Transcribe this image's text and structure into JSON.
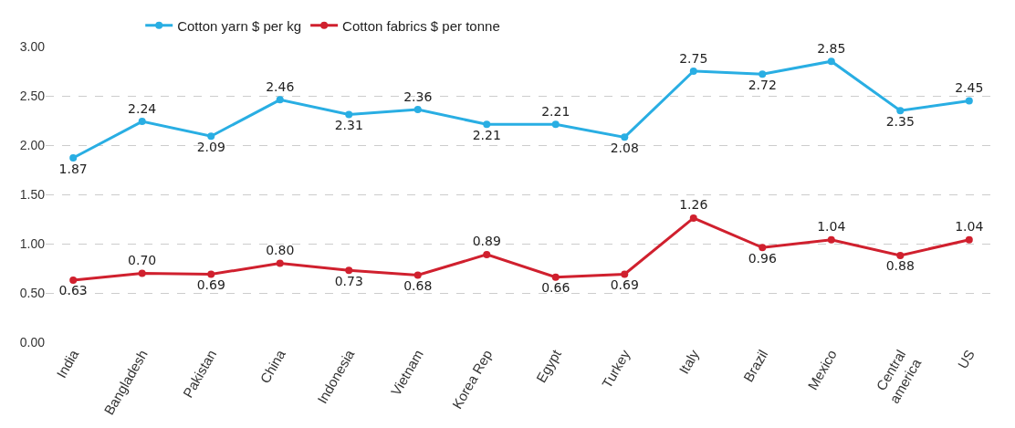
{
  "chart_data": {
    "type": "line",
    "categories": [
      "India",
      "Bangladesh",
      "Pakistan",
      "China",
      "Indonesia",
      "Vietnam",
      "Korea Rep",
      "Egypt",
      "Turkey",
      "Italy",
      "Brazil",
      "Mexico",
      "Central america",
      "US"
    ],
    "series": [
      {
        "name": "Cotton yarn $ per kg",
        "color": "#29aee3",
        "values": [
          1.87,
          2.24,
          2.09,
          2.46,
          2.31,
          2.36,
          2.21,
          2.21,
          2.08,
          2.75,
          2.72,
          2.85,
          2.35,
          2.45
        ],
        "value_labels": [
          "1.87",
          "2.24",
          "2.09",
          "2.46",
          "2.31",
          "2.36",
          "2.21",
          "2.21",
          "2.08",
          "2.75",
          "2.72",
          "2.85",
          "2.35",
          "2.45"
        ]
      },
      {
        "name": "Cotton fabrics $ per tonne",
        "color": "#d0202e",
        "values": [
          0.63,
          0.7,
          0.69,
          0.8,
          0.73,
          0.68,
          0.89,
          0.66,
          0.69,
          1.26,
          0.96,
          1.04,
          0.88,
          1.04
        ],
        "value_labels": [
          "0.63",
          "0.70",
          "0.69",
          "0.80",
          "0.73",
          "0.68",
          "0.89",
          "0.66",
          "0.69",
          "1.26",
          "0.96",
          "1.04",
          "0.88",
          "1.04"
        ]
      }
    ],
    "ylim": [
      0,
      3
    ],
    "yticks": [
      {
        "value": 0,
        "label": "0.00"
      },
      {
        "value": 0.5,
        "label": "0.50"
      },
      {
        "value": 1,
        "label": "1.00"
      },
      {
        "value": 1.5,
        "label": "1.50"
      },
      {
        "value": 2,
        "label": "2.00"
      },
      {
        "value": 2.5,
        "label": "2.50"
      },
      {
        "value": 3,
        "label": "3.00"
      }
    ],
    "grid": "y",
    "legend": "top",
    "marker": "circle",
    "line_style": "solid"
  }
}
